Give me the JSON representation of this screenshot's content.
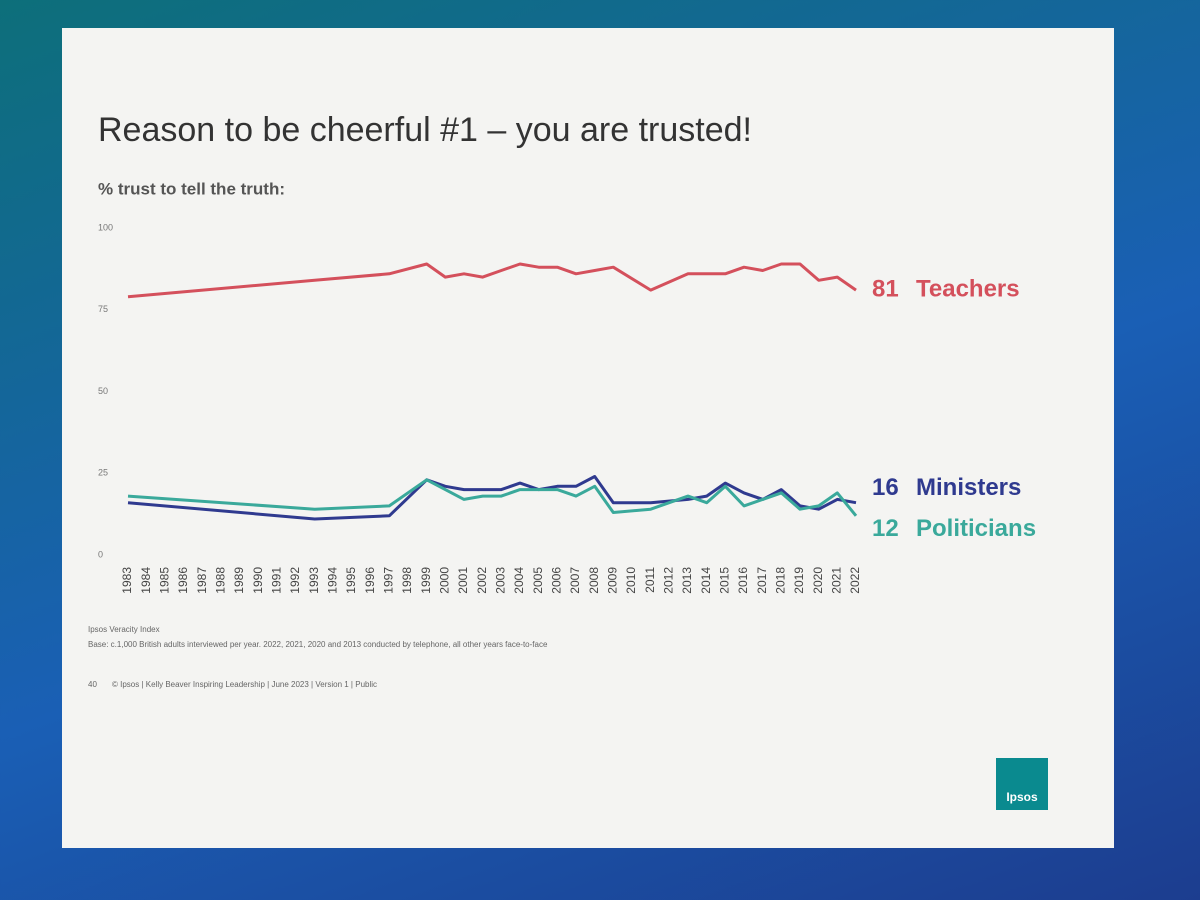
{
  "chart_data": {
    "type": "line",
    "title": "Reason to be cheerful #1 – you are trusted!",
    "subtitle": "% trust to tell the truth:",
    "source": "Ipsos Veracity Index",
    "note": "Base: c.1,000 British adults interviewed per year. 2022, 2021, 2020 and 2013 conducted by telephone, all other years face-to-face",
    "page_number": "40",
    "footer": "© Ipsos | Kelly Beaver Inspiring Leadership | June 2023 | Version 1 | Public",
    "logo": "Ipsos",
    "x": [
      1983,
      1993,
      1997,
      1999,
      2000,
      2001,
      2002,
      2003,
      2004,
      2005,
      2006,
      2007,
      2008,
      2009,
      2011,
      2013,
      2014,
      2015,
      2016,
      2017,
      2018,
      2019,
      2020,
      2021,
      2022
    ],
    "xlim": [
      1983,
      2022
    ],
    "xticks": [
      1983,
      1984,
      1985,
      1986,
      1987,
      1988,
      1989,
      1990,
      1991,
      1992,
      1993,
      1994,
      1995,
      1996,
      1997,
      1998,
      1999,
      2000,
      2001,
      2002,
      2003,
      2004,
      2005,
      2006,
      2007,
      2008,
      2009,
      2010,
      2011,
      2012,
      2013,
      2014,
      2015,
      2016,
      2017,
      2018,
      2019,
      2020,
      2021,
      2022
    ],
    "ylim": [
      0,
      100
    ],
    "yticks": [
      0,
      25,
      50,
      75,
      100
    ],
    "grid": false,
    "series": [
      {
        "name": "Teachers",
        "color": "#d4505c",
        "values": [
          79,
          84,
          86,
          89,
          85,
          86,
          85,
          87,
          89,
          88,
          88,
          86,
          87,
          88,
          81,
          86,
          86,
          86,
          88,
          87,
          89,
          89,
          84,
          85,
          81
        ]
      },
      {
        "name": "Ministers",
        "color": "#2f3a8f",
        "values": [
          16,
          11,
          12,
          23,
          21,
          20,
          20,
          20,
          22,
          20,
          21,
          21,
          24,
          16,
          16,
          17,
          18,
          22,
          19,
          17,
          20,
          15,
          14,
          17,
          16
        ]
      },
      {
        "name": "Politicians",
        "color": "#3aa99b",
        "values": [
          18,
          14,
          15,
          23,
          20,
          17,
          18,
          18,
          20,
          20,
          20,
          18,
          21,
          13,
          14,
          18,
          16,
          21,
          15,
          17,
          19,
          14,
          15,
          19,
          12
        ]
      }
    ]
  }
}
